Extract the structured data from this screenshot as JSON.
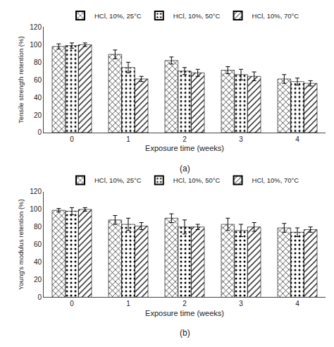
{
  "chart_data": [
    {
      "type": "bar",
      "categories": [
        "0",
        "1",
        "2",
        "3",
        "4"
      ],
      "series": [
        {
          "name": "HCl, 10%, 25°C",
          "color": "#29ABE2",
          "values": [
            98,
            89,
            82,
            71,
            61
          ],
          "error": [
            3,
            5,
            4,
            4,
            5
          ]
        },
        {
          "name": "HCl, 10%, 50°C",
          "color": "#FFFFFF",
          "values": [
            99,
            74,
            70,
            66,
            58
          ],
          "error": [
            3,
            6,
            4,
            6,
            4
          ]
        },
        {
          "name": "HCl, 10%, 70°C",
          "color": "#EE3124",
          "values": [
            100,
            61,
            68,
            64,
            56
          ],
          "error": [
            2,
            3,
            4,
            5,
            3
          ]
        }
      ],
      "xlabel": "Exposure time (weeks)",
      "ylabel": "Tensile strength retention (%)",
      "annotation": "(a)",
      "ylim": [
        0,
        120
      ],
      "yticks": [
        0,
        20,
        40,
        60,
        80,
        100,
        120
      ],
      "grid": false,
      "legend": "top"
    },
    {
      "type": "bar",
      "categories": [
        "0",
        "1",
        "2",
        "3",
        "4"
      ],
      "series": [
        {
          "name": "HCl, 10%, 25°C",
          "color": "#29ABE2",
          "values": [
            99,
            88,
            90,
            83,
            79
          ],
          "error": [
            2,
            5,
            5,
            7,
            5
          ]
        },
        {
          "name": "HCl, 10%, 50°C",
          "color": "#FFFFFF",
          "values": [
            98,
            83,
            80,
            76,
            74
          ],
          "error": [
            4,
            7,
            8,
            7,
            5
          ]
        },
        {
          "name": "HCl, 10%, 70°C",
          "color": "#EE3124",
          "values": [
            100,
            81,
            80,
            80,
            77
          ],
          "error": [
            2,
            4,
            3,
            5,
            3
          ]
        }
      ],
      "xlabel": "Exposure time (weeks)",
      "ylabel": "Young's modulus retention (%)",
      "annotation": "(b)",
      "ylim": [
        0,
        120
      ],
      "yticks": [
        0,
        20,
        40,
        60,
        80,
        100,
        120
      ],
      "grid": false,
      "legend": "top"
    }
  ]
}
